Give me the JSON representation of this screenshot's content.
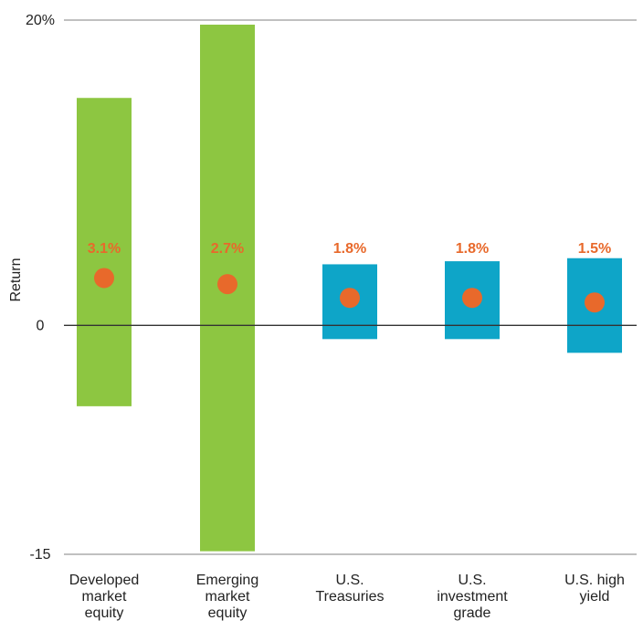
{
  "chart_data": {
    "type": "range_bar",
    "title": "",
    "xlabel": "",
    "ylabel": "Return",
    "ylim": [
      -15,
      20
    ],
    "yticks": [
      {
        "value": 20,
        "label": "20%"
      },
      {
        "value": 0,
        "label": "0"
      },
      {
        "value": -15,
        "label": "-15"
      }
    ],
    "grid": "top and bottom reference lines only",
    "categories": [
      {
        "label_lines": [
          "Developed",
          "market",
          "equity"
        ],
        "low": -5.3,
        "high": 14.9,
        "point": 3.1,
        "point_label": "3.1%",
        "color": "#8dc641"
      },
      {
        "label_lines": [
          "Emerging",
          "market",
          "equity"
        ],
        "low": -14.8,
        "high": 19.7,
        "point": 2.7,
        "point_label": "2.7%",
        "color": "#8dc641"
      },
      {
        "label_lines": [
          "U.S.",
          "Treasuries"
        ],
        "low": -0.9,
        "high": 4.0,
        "point": 1.8,
        "point_label": "1.8%",
        "color": "#0ea5c8"
      },
      {
        "label_lines": [
          "U.S.",
          "investment",
          "grade"
        ],
        "low": -0.9,
        "high": 4.2,
        "point": 1.8,
        "point_label": "1.8%",
        "color": "#0ea5c8"
      },
      {
        "label_lines": [
          "U.S. high",
          "yield"
        ],
        "low": -1.8,
        "high": 4.4,
        "point": 1.5,
        "point_label": "1.5%",
        "color": "#0ea5c8"
      }
    ],
    "point_color": "#e8692b"
  }
}
